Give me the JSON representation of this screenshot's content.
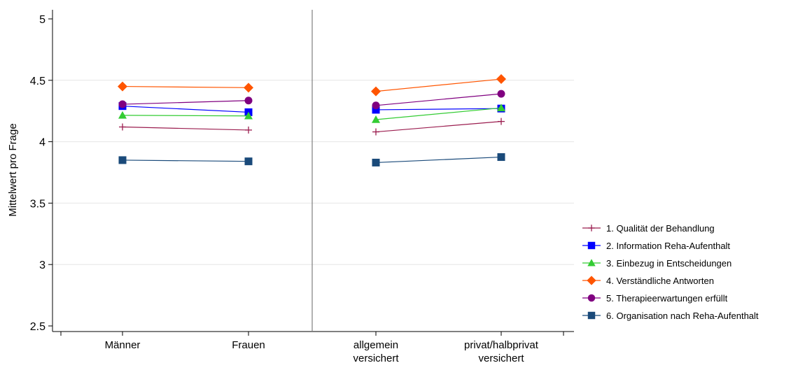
{
  "chart_data": {
    "type": "line",
    "title": "",
    "xlabel": "",
    "ylabel": "Mittelwert pro Frage",
    "ylim": [
      2.5,
      5
    ],
    "yticks": [
      "2.5",
      "3",
      "3.5",
      "4",
      "4.5",
      "5"
    ],
    "grid": true,
    "legend_position": "right",
    "categories": [
      [
        "Männer"
      ],
      [
        "Frauen"
      ],
      [
        "allgemein",
        "versichert"
      ],
      [
        "privat/halbprivat",
        "versichert"
      ]
    ],
    "groups": [
      [
        0,
        1
      ],
      [
        2,
        3
      ]
    ],
    "series": [
      {
        "name": "1. Qualität der Behandlung",
        "marker": "plus",
        "color": "#9b1d4f",
        "values": [
          4.12,
          4.095,
          4.08,
          4.165
        ]
      },
      {
        "name": "2. Information Reha-Aufenthalt",
        "marker": "square",
        "color": "#0000ff",
        "values": [
          4.29,
          4.24,
          4.26,
          4.27
        ]
      },
      {
        "name": "3. Einbezug in Entscheidungen",
        "marker": "triangle",
        "color": "#33cc33",
        "values": [
          4.215,
          4.21,
          4.18,
          4.275
        ]
      },
      {
        "name": "4. Verständliche Antworten",
        "marker": "diamond",
        "color": "#ff5500",
        "values": [
          4.45,
          4.44,
          4.41,
          4.51
        ]
      },
      {
        "name": "5. Therapieerwartungen erfüllt",
        "marker": "circle",
        "color": "#800080",
        "values": [
          4.305,
          4.335,
          4.295,
          4.39
        ]
      },
      {
        "name": "6. Organisation nach Reha-Aufenthalt",
        "marker": "square",
        "color": "#1a4a7a",
        "values": [
          3.85,
          3.84,
          3.83,
          3.875
        ]
      }
    ]
  }
}
